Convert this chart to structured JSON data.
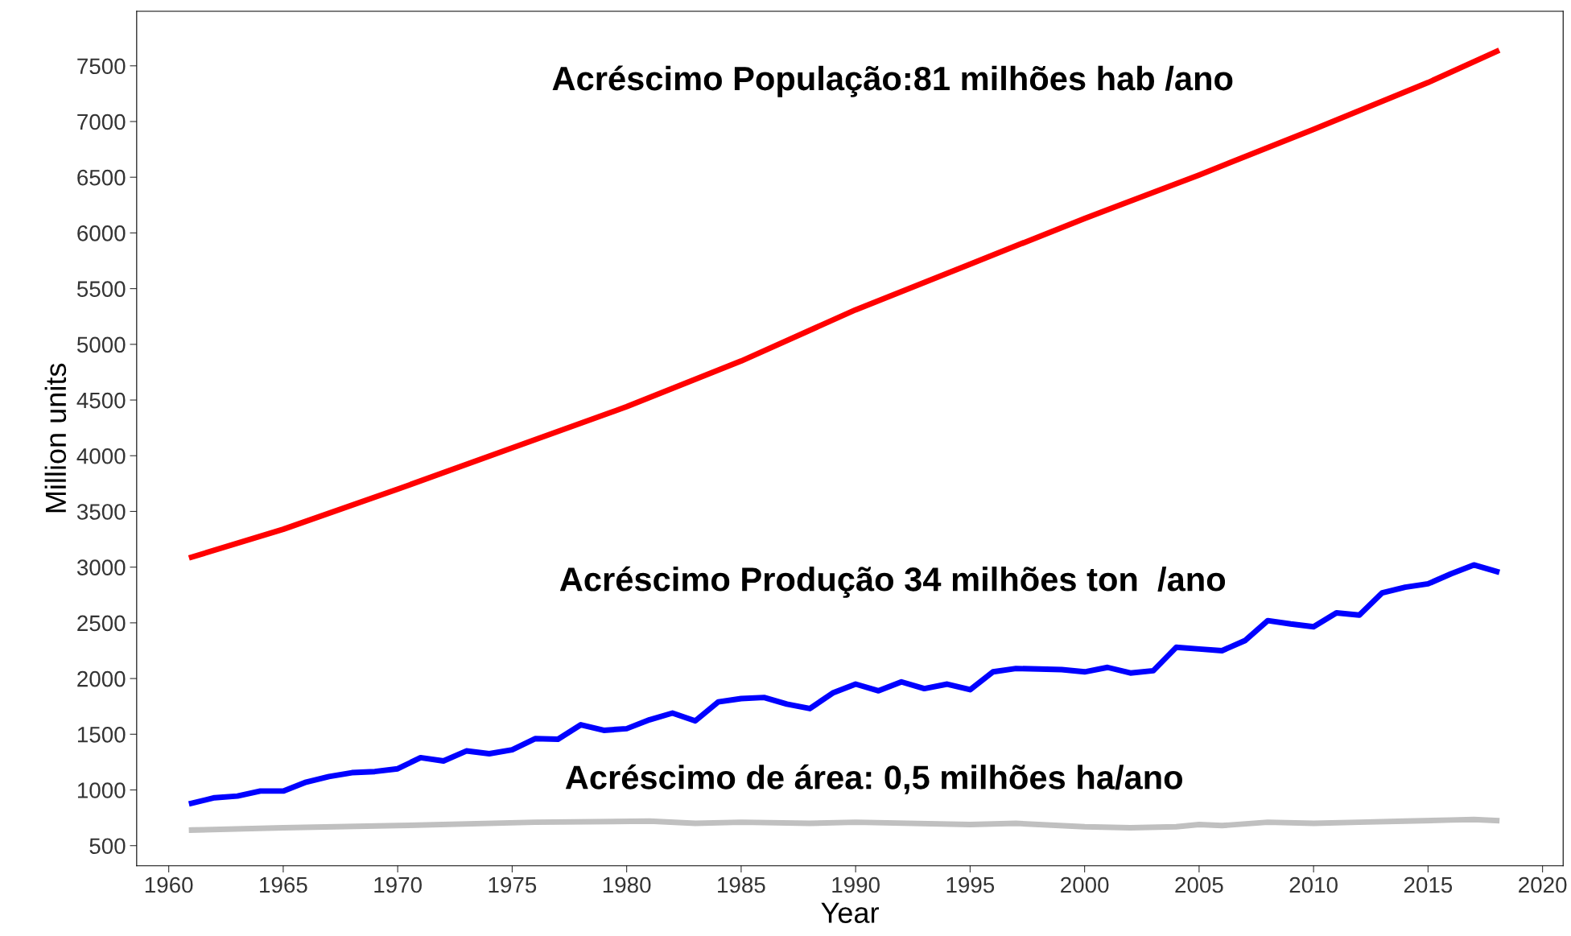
{
  "chart_data": {
    "type": "line",
    "xlabel": "Year",
    "ylabel": "Million units",
    "xlim": [
      1958.6,
      2020.9
    ],
    "xticks": [
      1960,
      1965,
      1970,
      1975,
      1980,
      1985,
      1990,
      1995,
      2000,
      2005,
      2010,
      2015,
      2020
    ],
    "ylim": [
      319,
      7990
    ],
    "yticks": [
      500,
      1000,
      1500,
      2000,
      2500,
      3000,
      3500,
      4000,
      4500,
      5000,
      5500,
      6000,
      6500,
      7000,
      7500
    ],
    "grid": false,
    "line_style": "solid",
    "marker": "none",
    "series": [
      {
        "color": "#ff0000",
        "x": [
          1961,
          1965,
          1970,
          1975,
          1980,
          1985,
          1990,
          1995,
          2000,
          2005,
          2010,
          2015,
          2018
        ],
        "values": [
          3090,
          3340,
          3700,
          4070,
          4440,
          4850,
          5310,
          5720,
          6130,
          6520,
          6930,
          7350,
          7630
        ]
      },
      {
        "color": "#0000ff",
        "x": [
          1961,
          1962,
          1963,
          1964,
          1965,
          1966,
          1967,
          1968,
          1969,
          1970,
          1971,
          1972,
          1973,
          1974,
          1975,
          1976,
          1977,
          1978,
          1979,
          1980,
          1981,
          1982,
          1983,
          1984,
          1985,
          1986,
          1987,
          1988,
          1989,
          1990,
          1991,
          1992,
          1993,
          1994,
          1995,
          1996,
          1997,
          1998,
          1999,
          2000,
          2001,
          2002,
          2003,
          2004,
          2005,
          2006,
          2007,
          2008,
          2009,
          2010,
          2011,
          2012,
          2013,
          2014,
          2015,
          2016,
          2017,
          2018
        ],
        "values": [
          880,
          930,
          945,
          990,
          990,
          1070,
          1120,
          1155,
          1165,
          1190,
          1290,
          1260,
          1350,
          1325,
          1360,
          1460,
          1455,
          1585,
          1535,
          1550,
          1630,
          1690,
          1620,
          1790,
          1820,
          1830,
          1770,
          1730,
          1870,
          1950,
          1890,
          1970,
          1910,
          1950,
          1900,
          2060,
          2090,
          2085,
          2080,
          2060,
          2100,
          2050,
          2070,
          2280,
          2265,
          2250,
          2340,
          2520,
          2490,
          2465,
          2590,
          2570,
          2770,
          2820,
          2850,
          2940,
          3020,
          2960
        ]
      },
      {
        "color": "#c0c0c0",
        "x": [
          1961,
          1965,
          1970,
          1976,
          1981,
          1983,
          1985,
          1988,
          1990,
          1995,
          1997,
          2000,
          2002,
          2004,
          2005,
          2006,
          2008,
          2010,
          2012,
          2014,
          2016,
          2017,
          2018
        ],
        "values": [
          640,
          660,
          680,
          710,
          720,
          700,
          710,
          700,
          710,
          690,
          700,
          670,
          660,
          670,
          690,
          680,
          710,
          700,
          710,
          720,
          730,
          735,
          725
        ]
      }
    ],
    "annotations": [
      "Acréscimo População:81 milhões hab /ano",
      "Acréscimo Produção 34 milhões ton  /ano",
      "Acréscimo de área: 0,5 milhões ha/ano"
    ]
  }
}
